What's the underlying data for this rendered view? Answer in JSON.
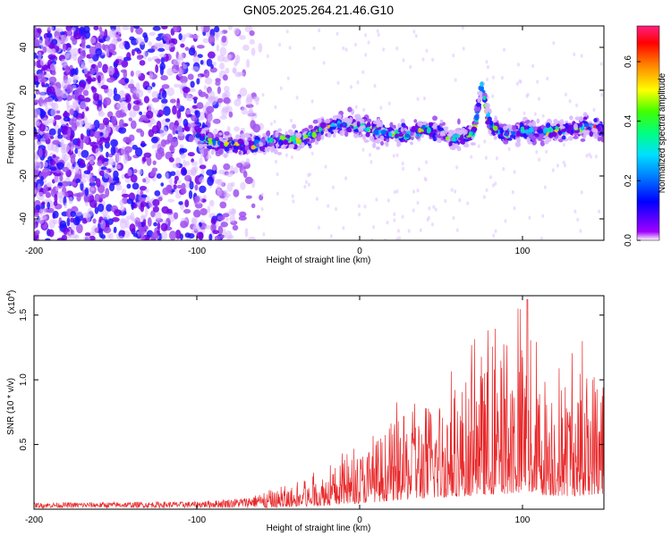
{
  "title": "GN05.2025.264.21.46.G10",
  "chart_data": [
    {
      "type": "heatmap",
      "xlabel": "Height of straight line (km)",
      "ylabel": "Frequency (Hz)",
      "xlim": [
        -200,
        150
      ],
      "ylim": [
        -50,
        50
      ],
      "xticks": [
        -200,
        -100,
        0,
        100
      ],
      "xticklabels": [
        "-200",
        "-100",
        "0",
        "100"
      ],
      "yticks": [
        -40,
        -20,
        0,
        20,
        40
      ],
      "yticklabels": [
        "-40",
        "-20",
        "0",
        "20",
        "40"
      ],
      "colorbar": {
        "label": "Normalized spectral amplitude",
        "range": [
          0.0,
          0.72
        ],
        "ticks": [
          0.0,
          0.2,
          0.4,
          0.6
        ],
        "ticklabels": [
          "0.0",
          "0.2",
          "0.4",
          "0.6"
        ]
      },
      "ridge": {
        "x": [
          -100,
          -90,
          -80,
          -70,
          -60,
          -50,
          -40,
          -30,
          -20,
          -10,
          0,
          10,
          20,
          30,
          40,
          50,
          55,
          60,
          65,
          70,
          73,
          75,
          78,
          80,
          90,
          100,
          110,
          120,
          130,
          140,
          150
        ],
        "y": [
          -1,
          -4,
          -5,
          -6,
          -5,
          -3,
          -3,
          -1,
          3,
          4,
          3,
          1,
          0,
          -1,
          2,
          0,
          -3,
          -2,
          -1,
          0,
          12,
          22,
          10,
          3,
          0,
          1,
          0,
          1,
          2,
          3,
          1
        ]
      }
    },
    {
      "type": "line",
      "xlabel": "Height of straight line (km)",
      "ylabel": "SNR (10 * v/v)",
      "scale_label": "(x10",
      "scale_exp": "4",
      "scale_close": ")",
      "xlim": [
        -200,
        150
      ],
      "ylim": [
        0,
        1.65
      ],
      "xticks": [
        -200,
        -100,
        0,
        100
      ],
      "xticklabels": [
        "-200",
        "-100",
        "0",
        "100"
      ],
      "yticks": [
        0.5,
        1.0,
        1.5
      ],
      "yticklabels": [
        "0.5",
        "1.0",
        "1.5"
      ],
      "series": [
        {
          "name": "SNR",
          "color": "#e8282a",
          "envelope_x": [
            -200,
            -100,
            -70,
            -50,
            -30,
            -10,
            0,
            10,
            30,
            50,
            70,
            90,
            100,
            110,
            130,
            150
          ],
          "envelope_y": [
            0.04,
            0.05,
            0.08,
            0.15,
            0.22,
            0.38,
            0.45,
            0.55,
            0.75,
            0.9,
            1.05,
            1.2,
            1.3,
            1.1,
            1.0,
            1.2
          ]
        }
      ]
    }
  ]
}
